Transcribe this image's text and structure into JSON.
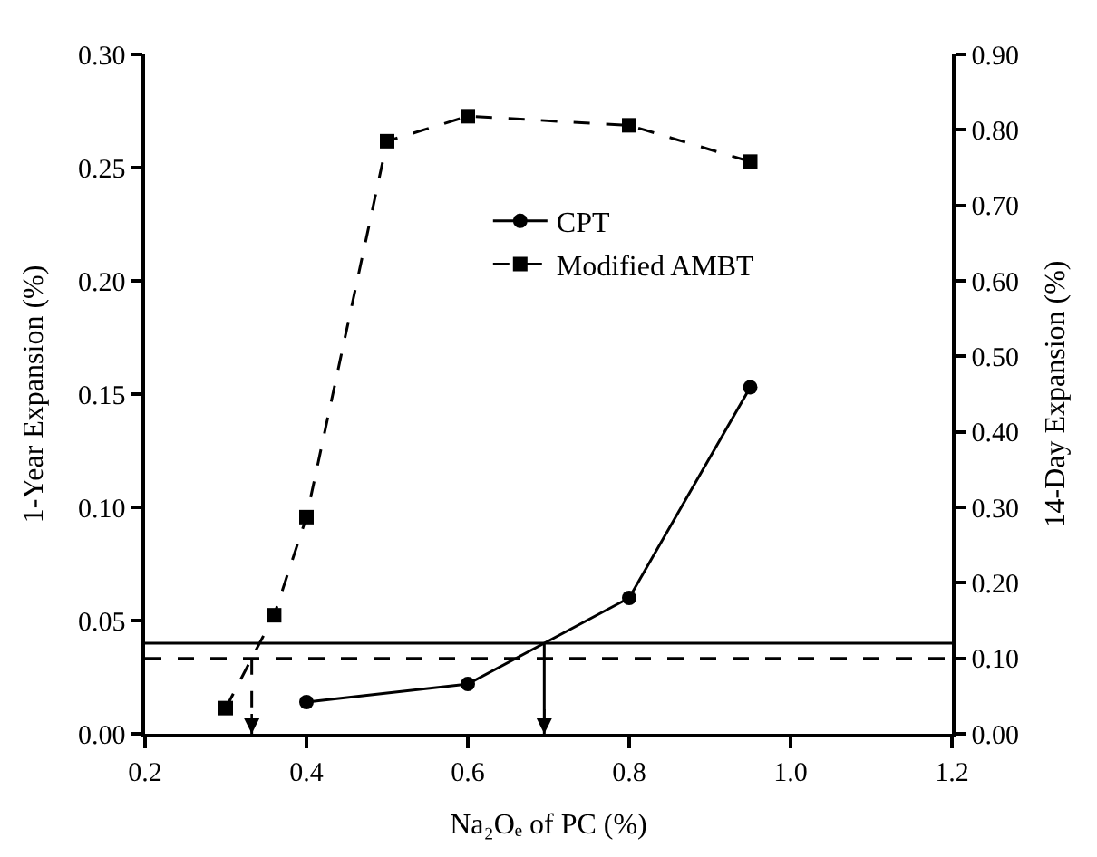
{
  "chart_data": {
    "type": "line",
    "xlabel": "Na₂Oₑ of PC (%)",
    "ylabel": "1-Year Expansion (%)",
    "y2label": "14-Day Expansion (%)",
    "series": [
      {
        "name": "CPT",
        "color": "#000000",
        "x": [
          0.4,
          0.6,
          0.8,
          0.95
        ],
        "values": [
          0.014,
          0.022,
          0.06,
          0.153
        ],
        "marker": "circle",
        "line_style": "solid",
        "axis": "y"
      },
      {
        "name": "Modified AMBT",
        "color": "#000000",
        "x": [
          0.3,
          0.36,
          0.4,
          0.5,
          0.6,
          0.8,
          0.95
        ],
        "values": [
          0.034,
          0.157,
          0.287,
          0.785,
          0.818,
          0.806,
          0.758
        ],
        "marker": "square",
        "line_style": "dashed",
        "axis": "y2"
      }
    ],
    "ref_lines": [
      {
        "axis": "y",
        "value": 0.04,
        "color": "#000000",
        "line_style": "solid"
      },
      {
        "axis": "y2",
        "value": 0.1,
        "color": "#000000",
        "line_style": "dashed"
      }
    ],
    "xlim": [
      0.2,
      1.2
    ],
    "xticks": [
      {
        "value": 0.2,
        "label": "0.2"
      },
      {
        "value": 0.4,
        "label": "0.4"
      },
      {
        "value": 0.6,
        "label": "0.6"
      },
      {
        "value": 0.8,
        "label": "0.8"
      },
      {
        "value": 1.0,
        "label": "1.0"
      },
      {
        "value": 1.2,
        "label": "1.2"
      }
    ],
    "ylim": [
      0,
      0.3
    ],
    "yticks": [
      {
        "value": 0,
        "label": "0.00"
      },
      0.05,
      {
        "value": 0.1,
        "label": "0.10"
      },
      0.15,
      {
        "value": 0.2,
        "label": "0.20"
      },
      0.25,
      {
        "value": 0.3,
        "label": "0.30"
      }
    ],
    "y2lim": [
      0,
      0.9
    ],
    "y2ticks": [
      {
        "value": 0,
        "label": "0.00"
      },
      {
        "value": 0.1,
        "label": "0.10"
      },
      {
        "value": 0.2,
        "label": "0.20"
      },
      {
        "value": 0.3,
        "label": "0.30"
      },
      {
        "value": 0.4,
        "label": "0.40"
      },
      {
        "value": 0.5,
        "label": "0.50"
      },
      {
        "value": 0.6,
        "label": "0.60"
      },
      {
        "value": 0.7,
        "label": "0.70"
      },
      {
        "value": 0.8,
        "label": "0.80"
      },
      {
        "value": 0.9,
        "label": "0.90"
      }
    ],
    "legend": "top right"
  }
}
